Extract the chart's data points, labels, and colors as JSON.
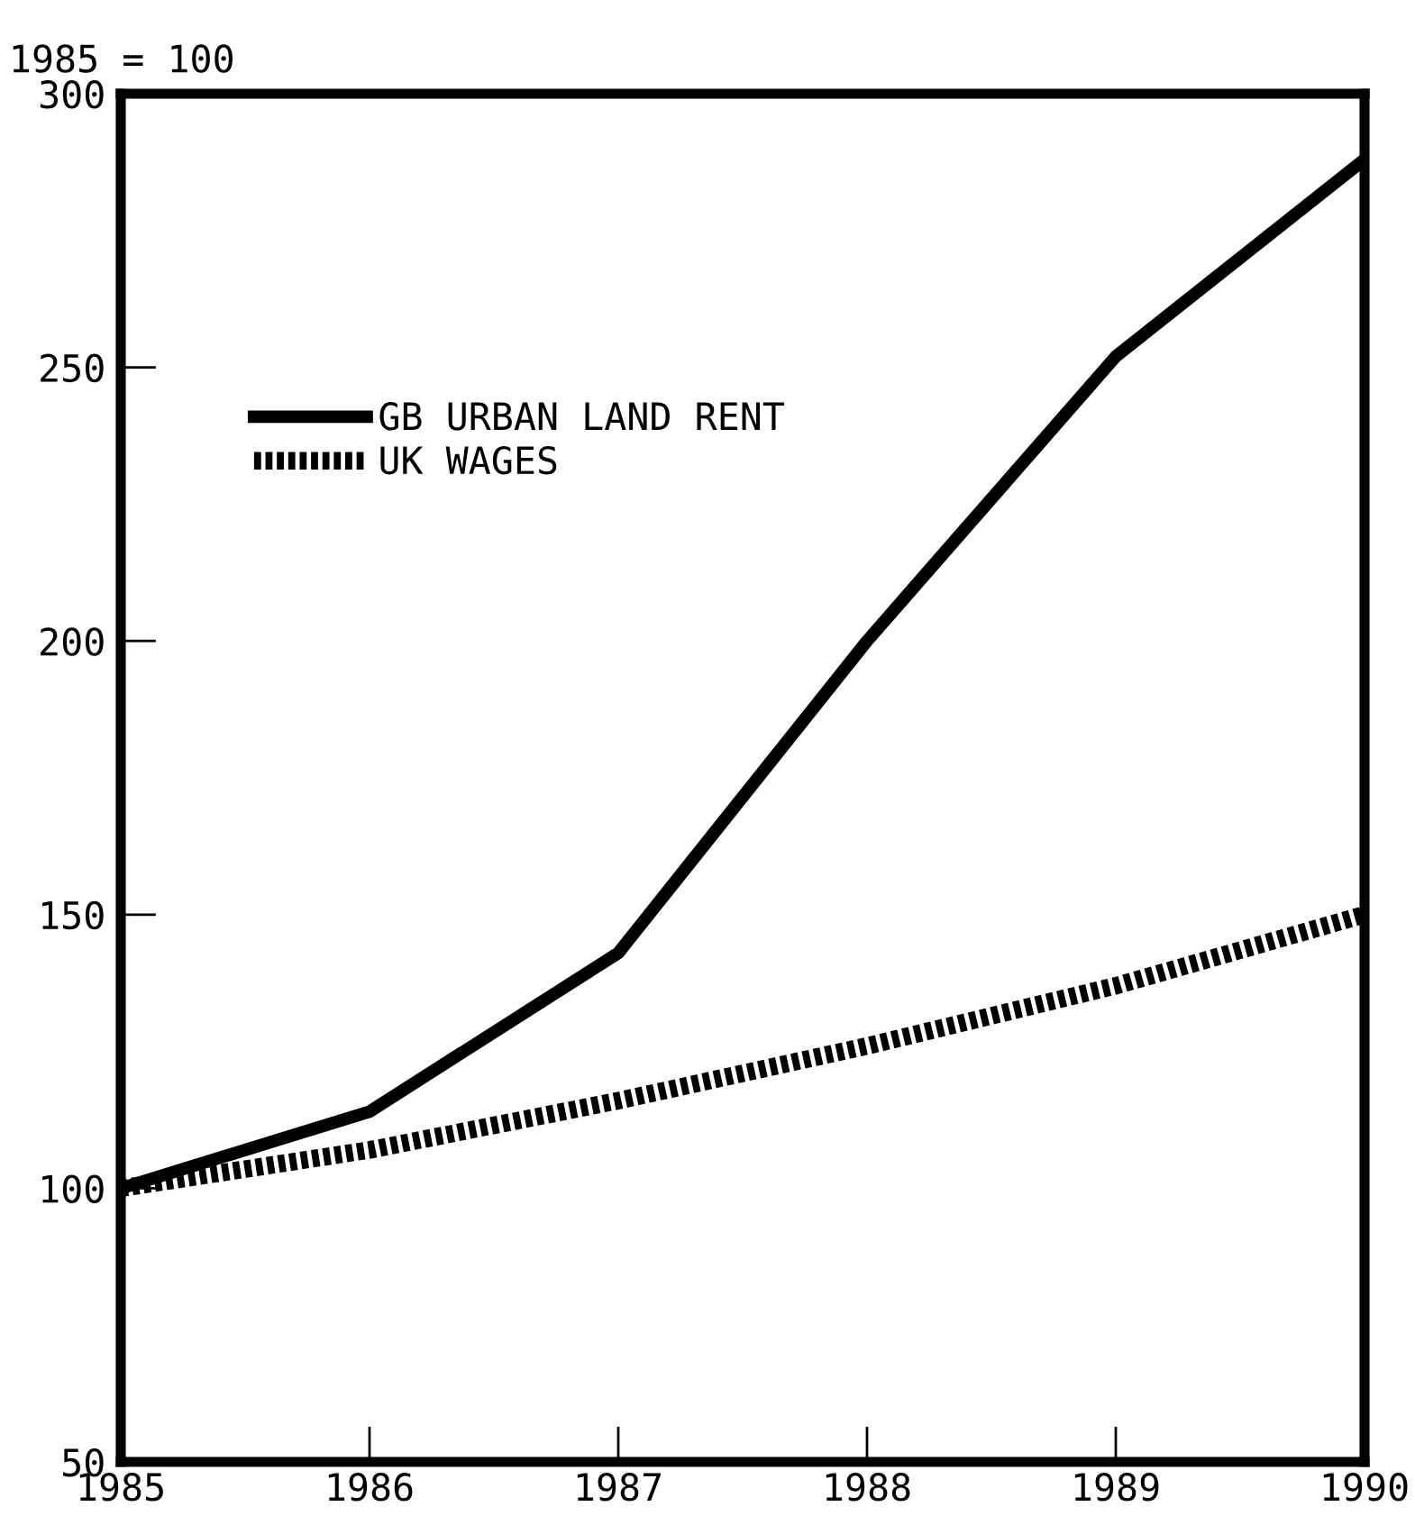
{
  "chart_data": {
    "type": "line",
    "ylabel": "1985 = 100",
    "x": [
      1985,
      1986,
      1987,
      1988,
      1989,
      1990
    ],
    "series": [
      {
        "name": "GB URBAN LAND RENT",
        "color": "#000000",
        "line_style": "solid",
        "values": [
          100,
          114,
          143,
          200,
          252,
          288
        ]
      },
      {
        "name": "UK WAGES",
        "color": "#000000",
        "line_style": "dotted",
        "values": [
          100,
          107,
          116,
          126,
          137,
          150
        ]
      }
    ],
    "xlim": [
      1985,
      1990
    ],
    "xticks": [
      1985,
      1986,
      1987,
      1988,
      1989,
      1990
    ],
    "ylim": [
      50,
      300
    ],
    "yticks": [
      50,
      100,
      150,
      200,
      250,
      300
    ],
    "grid": false,
    "legend": "top left",
    "marker": "none"
  }
}
